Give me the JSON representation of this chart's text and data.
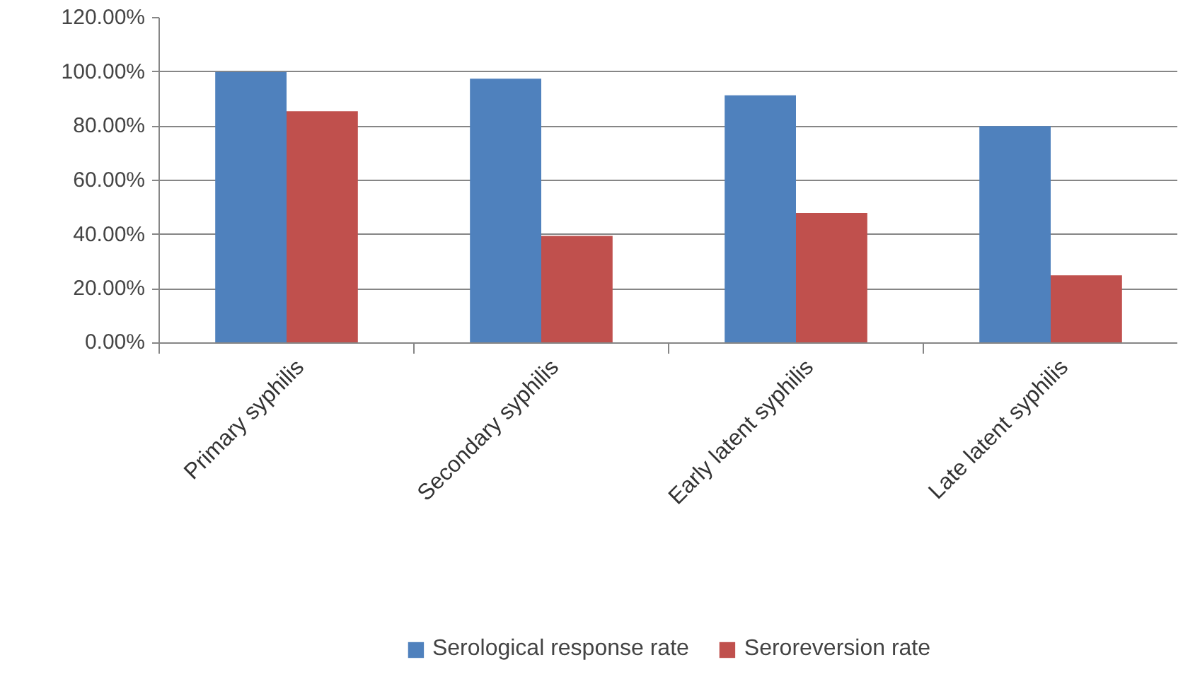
{
  "chart_data": {
    "type": "bar",
    "categories": [
      "Primary syphilis",
      "Secondary syphilis",
      "Early latent syphilis",
      "Late latent syphilis"
    ],
    "series": [
      {
        "name": "Serological response rate",
        "color": "#4f81bd",
        "values": [
          100,
          97.5,
          91.4,
          80
        ]
      },
      {
        "name": "Seroreversion rate",
        "color": "#c0504d",
        "values": [
          85.5,
          39.5,
          48,
          25
        ]
      }
    ],
    "ylim": [
      0,
      120
    ],
    "yticks": [
      {
        "value": 0,
        "label": "0.00%"
      },
      {
        "value": 20,
        "label": "20.00%"
      },
      {
        "value": 40,
        "label": "40.00%"
      },
      {
        "value": 60,
        "label": "60.00%"
      },
      {
        "value": 80,
        "label": "80.00%"
      },
      {
        "value": 100,
        "label": "100.00%"
      },
      {
        "value": 120,
        "label": "120.00%"
      }
    ],
    "grid": "y",
    "legend": "bottom"
  }
}
